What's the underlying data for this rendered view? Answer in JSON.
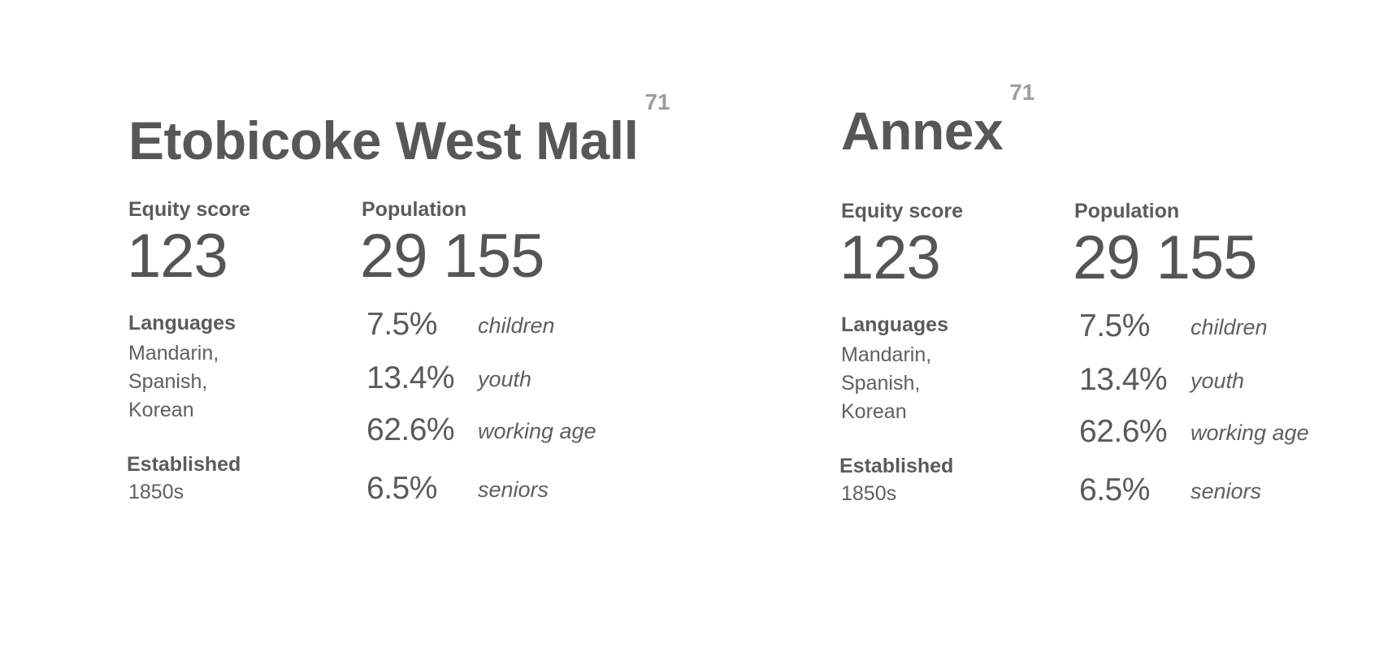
{
  "neighbourhoods": [
    {
      "name": "Etobicoke West Mall",
      "rank": "71",
      "equity_label": "Equity score",
      "equity_score": "123",
      "population_label": "Population",
      "population": "29 155",
      "languages_label": "Languages",
      "languages": [
        "Mandarin,",
        "Spanish,",
        "Korean"
      ],
      "established_label": "Established",
      "established": "1850s",
      "age_groups": [
        {
          "percent": "7.5%",
          "label": "children"
        },
        {
          "percent": "13.4%",
          "label": "youth"
        },
        {
          "percent": "62.6%",
          "label": "working age"
        },
        {
          "percent": "6.5%",
          "label": "seniors"
        }
      ]
    },
    {
      "name": "Annex",
      "rank": "71",
      "equity_label": "Equity score",
      "equity_score": "123",
      "population_label": "Population",
      "population": "29 155",
      "languages_label": "Languages",
      "languages": [
        "Mandarin,",
        "Spanish,",
        "Korean"
      ],
      "established_label": "Established",
      "established": "1850s",
      "age_groups": [
        {
          "percent": "7.5%",
          "label": "children"
        },
        {
          "percent": "13.4%",
          "label": "youth"
        },
        {
          "percent": "62.6%",
          "label": "working age"
        },
        {
          "percent": "6.5%",
          "label": "seniors"
        }
      ]
    }
  ]
}
